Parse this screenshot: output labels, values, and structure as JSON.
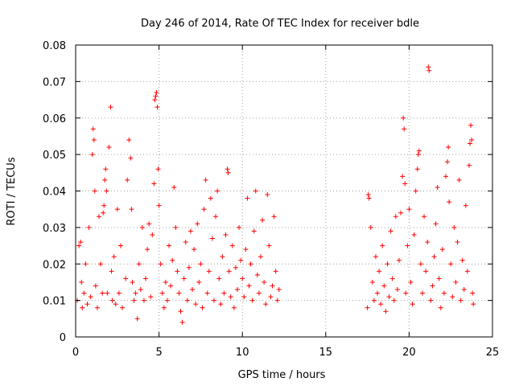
{
  "chart_data": {
    "type": "scatter",
    "title": "Day 246 of 2014, Rate Of TEC Index for receiver bdle",
    "xlabel": "GPS time / hours",
    "ylabel": "ROTI / TECUs",
    "xlim": [
      0,
      25
    ],
    "ylim": [
      0,
      0.08
    ],
    "grid": true,
    "marker": "+",
    "color": "#ff0000",
    "x_ticks": [
      0,
      5,
      10,
      15,
      20,
      25
    ],
    "x_tick_labels": [
      "0",
      "5",
      "10",
      "15",
      "20",
      "25"
    ],
    "y_ticks": [
      0,
      0.01,
      0.02,
      0.03,
      0.04,
      0.05,
      0.06,
      0.07,
      0.08
    ],
    "y_tick_labels": [
      "0",
      "0.01",
      "0.02",
      "0.03",
      "0.04",
      "0.05",
      "0.06",
      "0.07",
      "0.08"
    ],
    "series": [
      {
        "name": "ROTI",
        "points": [
          [
            0.1,
            0.01
          ],
          [
            0.2,
            0.025
          ],
          [
            0.3,
            0.026
          ],
          [
            0.35,
            0.015
          ],
          [
            0.4,
            0.008
          ],
          [
            0.5,
            0.012
          ],
          [
            0.6,
            0.02
          ],
          [
            0.7,
            0.009
          ],
          [
            0.8,
            0.03
          ],
          [
            0.9,
            0.011
          ],
          [
            1.0,
            0.05
          ],
          [
            1.05,
            0.057
          ],
          [
            1.1,
            0.054
          ],
          [
            1.15,
            0.04
          ],
          [
            1.2,
            0.014
          ],
          [
            1.3,
            0.008
          ],
          [
            1.4,
            0.033
          ],
          [
            1.5,
            0.02
          ],
          [
            1.6,
            0.012
          ],
          [
            1.65,
            0.034
          ],
          [
            1.7,
            0.036
          ],
          [
            1.75,
            0.043
          ],
          [
            1.8,
            0.046
          ],
          [
            1.85,
            0.04
          ],
          [
            1.9,
            0.012
          ],
          [
            2.0,
            0.052
          ],
          [
            2.1,
            0.063
          ],
          [
            2.15,
            0.018
          ],
          [
            2.2,
            0.01
          ],
          [
            2.3,
            0.022
          ],
          [
            2.4,
            0.009
          ],
          [
            2.5,
            0.035
          ],
          [
            2.6,
            0.012
          ],
          [
            2.7,
            0.025
          ],
          [
            2.8,
            0.008
          ],
          [
            3.0,
            0.016
          ],
          [
            3.1,
            0.043
          ],
          [
            3.2,
            0.054
          ],
          [
            3.3,
            0.049
          ],
          [
            3.35,
            0.035
          ],
          [
            3.4,
            0.015
          ],
          [
            3.5,
            0.01
          ],
          [
            3.6,
            0.012
          ],
          [
            3.7,
            0.005
          ],
          [
            3.8,
            0.02
          ],
          [
            3.9,
            0.013
          ],
          [
            4.0,
            0.03
          ],
          [
            4.1,
            0.01
          ],
          [
            4.2,
            0.016
          ],
          [
            4.3,
            0.024
          ],
          [
            4.4,
            0.031
          ],
          [
            4.5,
            0.011
          ],
          [
            4.6,
            0.028
          ],
          [
            4.7,
            0.042
          ],
          [
            4.75,
            0.065
          ],
          [
            4.8,
            0.066
          ],
          [
            4.85,
            0.067
          ],
          [
            4.9,
            0.063
          ],
          [
            4.95,
            0.046
          ],
          [
            5.0,
            0.036
          ],
          [
            5.1,
            0.02
          ],
          [
            5.2,
            0.012
          ],
          [
            5.3,
            0.008
          ],
          [
            5.4,
            0.015
          ],
          [
            5.5,
            0.01
          ],
          [
            5.6,
            0.025
          ],
          [
            5.7,
            0.014
          ],
          [
            5.8,
            0.021
          ],
          [
            5.9,
            0.041
          ],
          [
            6.0,
            0.03
          ],
          [
            6.1,
            0.018
          ],
          [
            6.2,
            0.012
          ],
          [
            6.3,
            0.007
          ],
          [
            6.4,
            0.004
          ],
          [
            6.5,
            0.016
          ],
          [
            6.6,
            0.026
          ],
          [
            6.7,
            0.01
          ],
          [
            6.8,
            0.019
          ],
          [
            6.9,
            0.029
          ],
          [
            7.0,
            0.013
          ],
          [
            7.1,
            0.024
          ],
          [
            7.2,
            0.009
          ],
          [
            7.3,
            0.031
          ],
          [
            7.4,
            0.015
          ],
          [
            7.5,
            0.02
          ],
          [
            7.6,
            0.008
          ],
          [
            7.7,
            0.035
          ],
          [
            7.8,
            0.043
          ],
          [
            7.9,
            0.012
          ],
          [
            8.0,
            0.018
          ],
          [
            8.1,
            0.038
          ],
          [
            8.2,
            0.027
          ],
          [
            8.3,
            0.01
          ],
          [
            8.4,
            0.033
          ],
          [
            8.5,
            0.04
          ],
          [
            8.6,
            0.016
          ],
          [
            8.7,
            0.009
          ],
          [
            8.8,
            0.022
          ],
          [
            8.9,
            0.012
          ],
          [
            9.0,
            0.028
          ],
          [
            9.1,
            0.046
          ],
          [
            9.15,
            0.045
          ],
          [
            9.2,
            0.018
          ],
          [
            9.3,
            0.011
          ],
          [
            9.4,
            0.025
          ],
          [
            9.5,
            0.008
          ],
          [
            9.6,
            0.019
          ],
          [
            9.7,
            0.013
          ],
          [
            9.8,
            0.03
          ],
          [
            9.9,
            0.021
          ],
          [
            10.0,
            0.016
          ],
          [
            10.1,
            0.011
          ],
          [
            10.2,
            0.024
          ],
          [
            10.3,
            0.038
          ],
          [
            10.4,
            0.014
          ],
          [
            10.5,
            0.02
          ],
          [
            10.6,
            0.01
          ],
          [
            10.7,
            0.029
          ],
          [
            10.8,
            0.04
          ],
          [
            10.9,
            0.017
          ],
          [
            11.0,
            0.012
          ],
          [
            11.1,
            0.022
          ],
          [
            11.2,
            0.032
          ],
          [
            11.3,
            0.015
          ],
          [
            11.4,
            0.009
          ],
          [
            11.5,
            0.039
          ],
          [
            11.6,
            0.025
          ],
          [
            11.7,
            0.011
          ],
          [
            11.8,
            0.014
          ],
          [
            11.9,
            0.033
          ],
          [
            12.0,
            0.018
          ],
          [
            12.1,
            0.01
          ],
          [
            12.2,
            0.013
          ],
          [
            17.5,
            0.008
          ],
          [
            17.55,
            0.039
          ],
          [
            17.6,
            0.038
          ],
          [
            17.7,
            0.03
          ],
          [
            17.8,
            0.015
          ],
          [
            17.9,
            0.01
          ],
          [
            18.0,
            0.022
          ],
          [
            18.1,
            0.012
          ],
          [
            18.2,
            0.018
          ],
          [
            18.3,
            0.009
          ],
          [
            18.4,
            0.025
          ],
          [
            18.5,
            0.014
          ],
          [
            18.6,
            0.007
          ],
          [
            18.7,
            0.02
          ],
          [
            18.8,
            0.011
          ],
          [
            18.9,
            0.029
          ],
          [
            19.0,
            0.016
          ],
          [
            19.1,
            0.01
          ],
          [
            19.2,
            0.033
          ],
          [
            19.3,
            0.013
          ],
          [
            19.4,
            0.021
          ],
          [
            19.5,
            0.034
          ],
          [
            19.6,
            0.044
          ],
          [
            19.65,
            0.06
          ],
          [
            19.7,
            0.057
          ],
          [
            19.75,
            0.042
          ],
          [
            19.8,
            0.012
          ],
          [
            19.9,
            0.025
          ],
          [
            20.0,
            0.035
          ],
          [
            20.1,
            0.015
          ],
          [
            20.2,
            0.009
          ],
          [
            20.3,
            0.028
          ],
          [
            20.4,
            0.04
          ],
          [
            20.5,
            0.046
          ],
          [
            20.55,
            0.05
          ],
          [
            20.6,
            0.051
          ],
          [
            20.7,
            0.02
          ],
          [
            20.8,
            0.012
          ],
          [
            20.9,
            0.033
          ],
          [
            21.0,
            0.018
          ],
          [
            21.1,
            0.026
          ],
          [
            21.15,
            0.074
          ],
          [
            21.2,
            0.073
          ],
          [
            21.3,
            0.01
          ],
          [
            21.4,
            0.014
          ],
          [
            21.5,
            0.022
          ],
          [
            21.6,
            0.031
          ],
          [
            21.7,
            0.041
          ],
          [
            21.8,
            0.016
          ],
          [
            21.9,
            0.008
          ],
          [
            22.0,
            0.024
          ],
          [
            22.1,
            0.012
          ],
          [
            22.2,
            0.044
          ],
          [
            22.3,
            0.048
          ],
          [
            22.35,
            0.052
          ],
          [
            22.4,
            0.037
          ],
          [
            22.5,
            0.02
          ],
          [
            22.6,
            0.011
          ],
          [
            22.7,
            0.03
          ],
          [
            22.8,
            0.015
          ],
          [
            22.9,
            0.026
          ],
          [
            23.0,
            0.043
          ],
          [
            23.1,
            0.01
          ],
          [
            23.2,
            0.021
          ],
          [
            23.3,
            0.013
          ],
          [
            23.4,
            0.036
          ],
          [
            23.5,
            0.018
          ],
          [
            23.6,
            0.047
          ],
          [
            23.65,
            0.053
          ],
          [
            23.7,
            0.058
          ],
          [
            23.75,
            0.054
          ],
          [
            23.8,
            0.012
          ],
          [
            23.85,
            0.009
          ]
        ]
      }
    ]
  }
}
